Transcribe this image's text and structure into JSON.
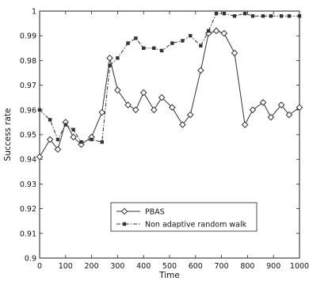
{
  "chart_data": {
    "type": "line",
    "title": "",
    "xlabel": "Time",
    "ylabel": "Success rate",
    "xlim": [
      0,
      1000
    ],
    "ylim": [
      0.9,
      1.0
    ],
    "xticks": [
      0,
      100,
      200,
      300,
      400,
      500,
      600,
      700,
      800,
      900,
      1000
    ],
    "xtick_labels": [
      "0",
      "100",
      "200",
      "300",
      "400",
      "500",
      "600",
      "700",
      "800",
      "900",
      "1000"
    ],
    "yticks": [
      0.9,
      0.91,
      0.92,
      0.93,
      0.94,
      0.95,
      0.96,
      0.97,
      0.98,
      0.99,
      1.0
    ],
    "ytick_labels": [
      "0.9",
      "0.91",
      "0.92",
      "0.93",
      "0.94",
      "0.95",
      "0.96",
      "0.97",
      "0.98",
      "0.99",
      "1"
    ],
    "grid": false,
    "legend": "lower-center",
    "series": [
      {
        "name": "PBAS",
        "color": "#333333",
        "line_style": "solid",
        "marker": "diamond",
        "points": [
          [
            0,
            0.941
          ],
          [
            40,
            0.948
          ],
          [
            70,
            0.944
          ],
          [
            100,
            0.955
          ],
          [
            130,
            0.949
          ],
          [
            160,
            0.946
          ],
          [
            200,
            0.949
          ],
          [
            240,
            0.959
          ],
          [
            270,
            0.981
          ],
          [
            300,
            0.968
          ],
          [
            340,
            0.962
          ],
          [
            370,
            0.96
          ],
          [
            400,
            0.967
          ],
          [
            440,
            0.96
          ],
          [
            470,
            0.965
          ],
          [
            510,
            0.961
          ],
          [
            550,
            0.954
          ],
          [
            580,
            0.958
          ],
          [
            620,
            0.976
          ],
          [
            650,
            0.991
          ],
          [
            680,
            0.992
          ],
          [
            710,
            0.991
          ],
          [
            750,
            0.983
          ],
          [
            790,
            0.954
          ],
          [
            820,
            0.96
          ],
          [
            860,
            0.963
          ],
          [
            890,
            0.957
          ],
          [
            930,
            0.962
          ],
          [
            960,
            0.958
          ],
          [
            1000,
            0.961
          ]
        ]
      },
      {
        "name": "Non adaptive random walk",
        "color": "#333333",
        "line_style": "dashdot",
        "marker": "square",
        "points": [
          [
            0,
            0.96
          ],
          [
            40,
            0.956
          ],
          [
            70,
            0.948
          ],
          [
            100,
            0.954
          ],
          [
            130,
            0.952
          ],
          [
            160,
            0.947
          ],
          [
            200,
            0.948
          ],
          [
            240,
            0.947
          ],
          [
            270,
            0.978
          ],
          [
            300,
            0.981
          ],
          [
            340,
            0.987
          ],
          [
            370,
            0.989
          ],
          [
            400,
            0.985
          ],
          [
            440,
            0.985
          ],
          [
            470,
            0.984
          ],
          [
            510,
            0.987
          ],
          [
            550,
            0.988
          ],
          [
            580,
            0.99
          ],
          [
            620,
            0.986
          ],
          [
            650,
            0.992
          ],
          [
            680,
            0.999
          ],
          [
            710,
            0.999
          ],
          [
            750,
            0.998
          ],
          [
            790,
            0.999
          ],
          [
            820,
            0.998
          ],
          [
            860,
            0.998
          ],
          [
            890,
            0.998
          ],
          [
            930,
            0.998
          ],
          [
            960,
            0.998
          ],
          [
            1000,
            0.998
          ]
        ]
      }
    ]
  }
}
